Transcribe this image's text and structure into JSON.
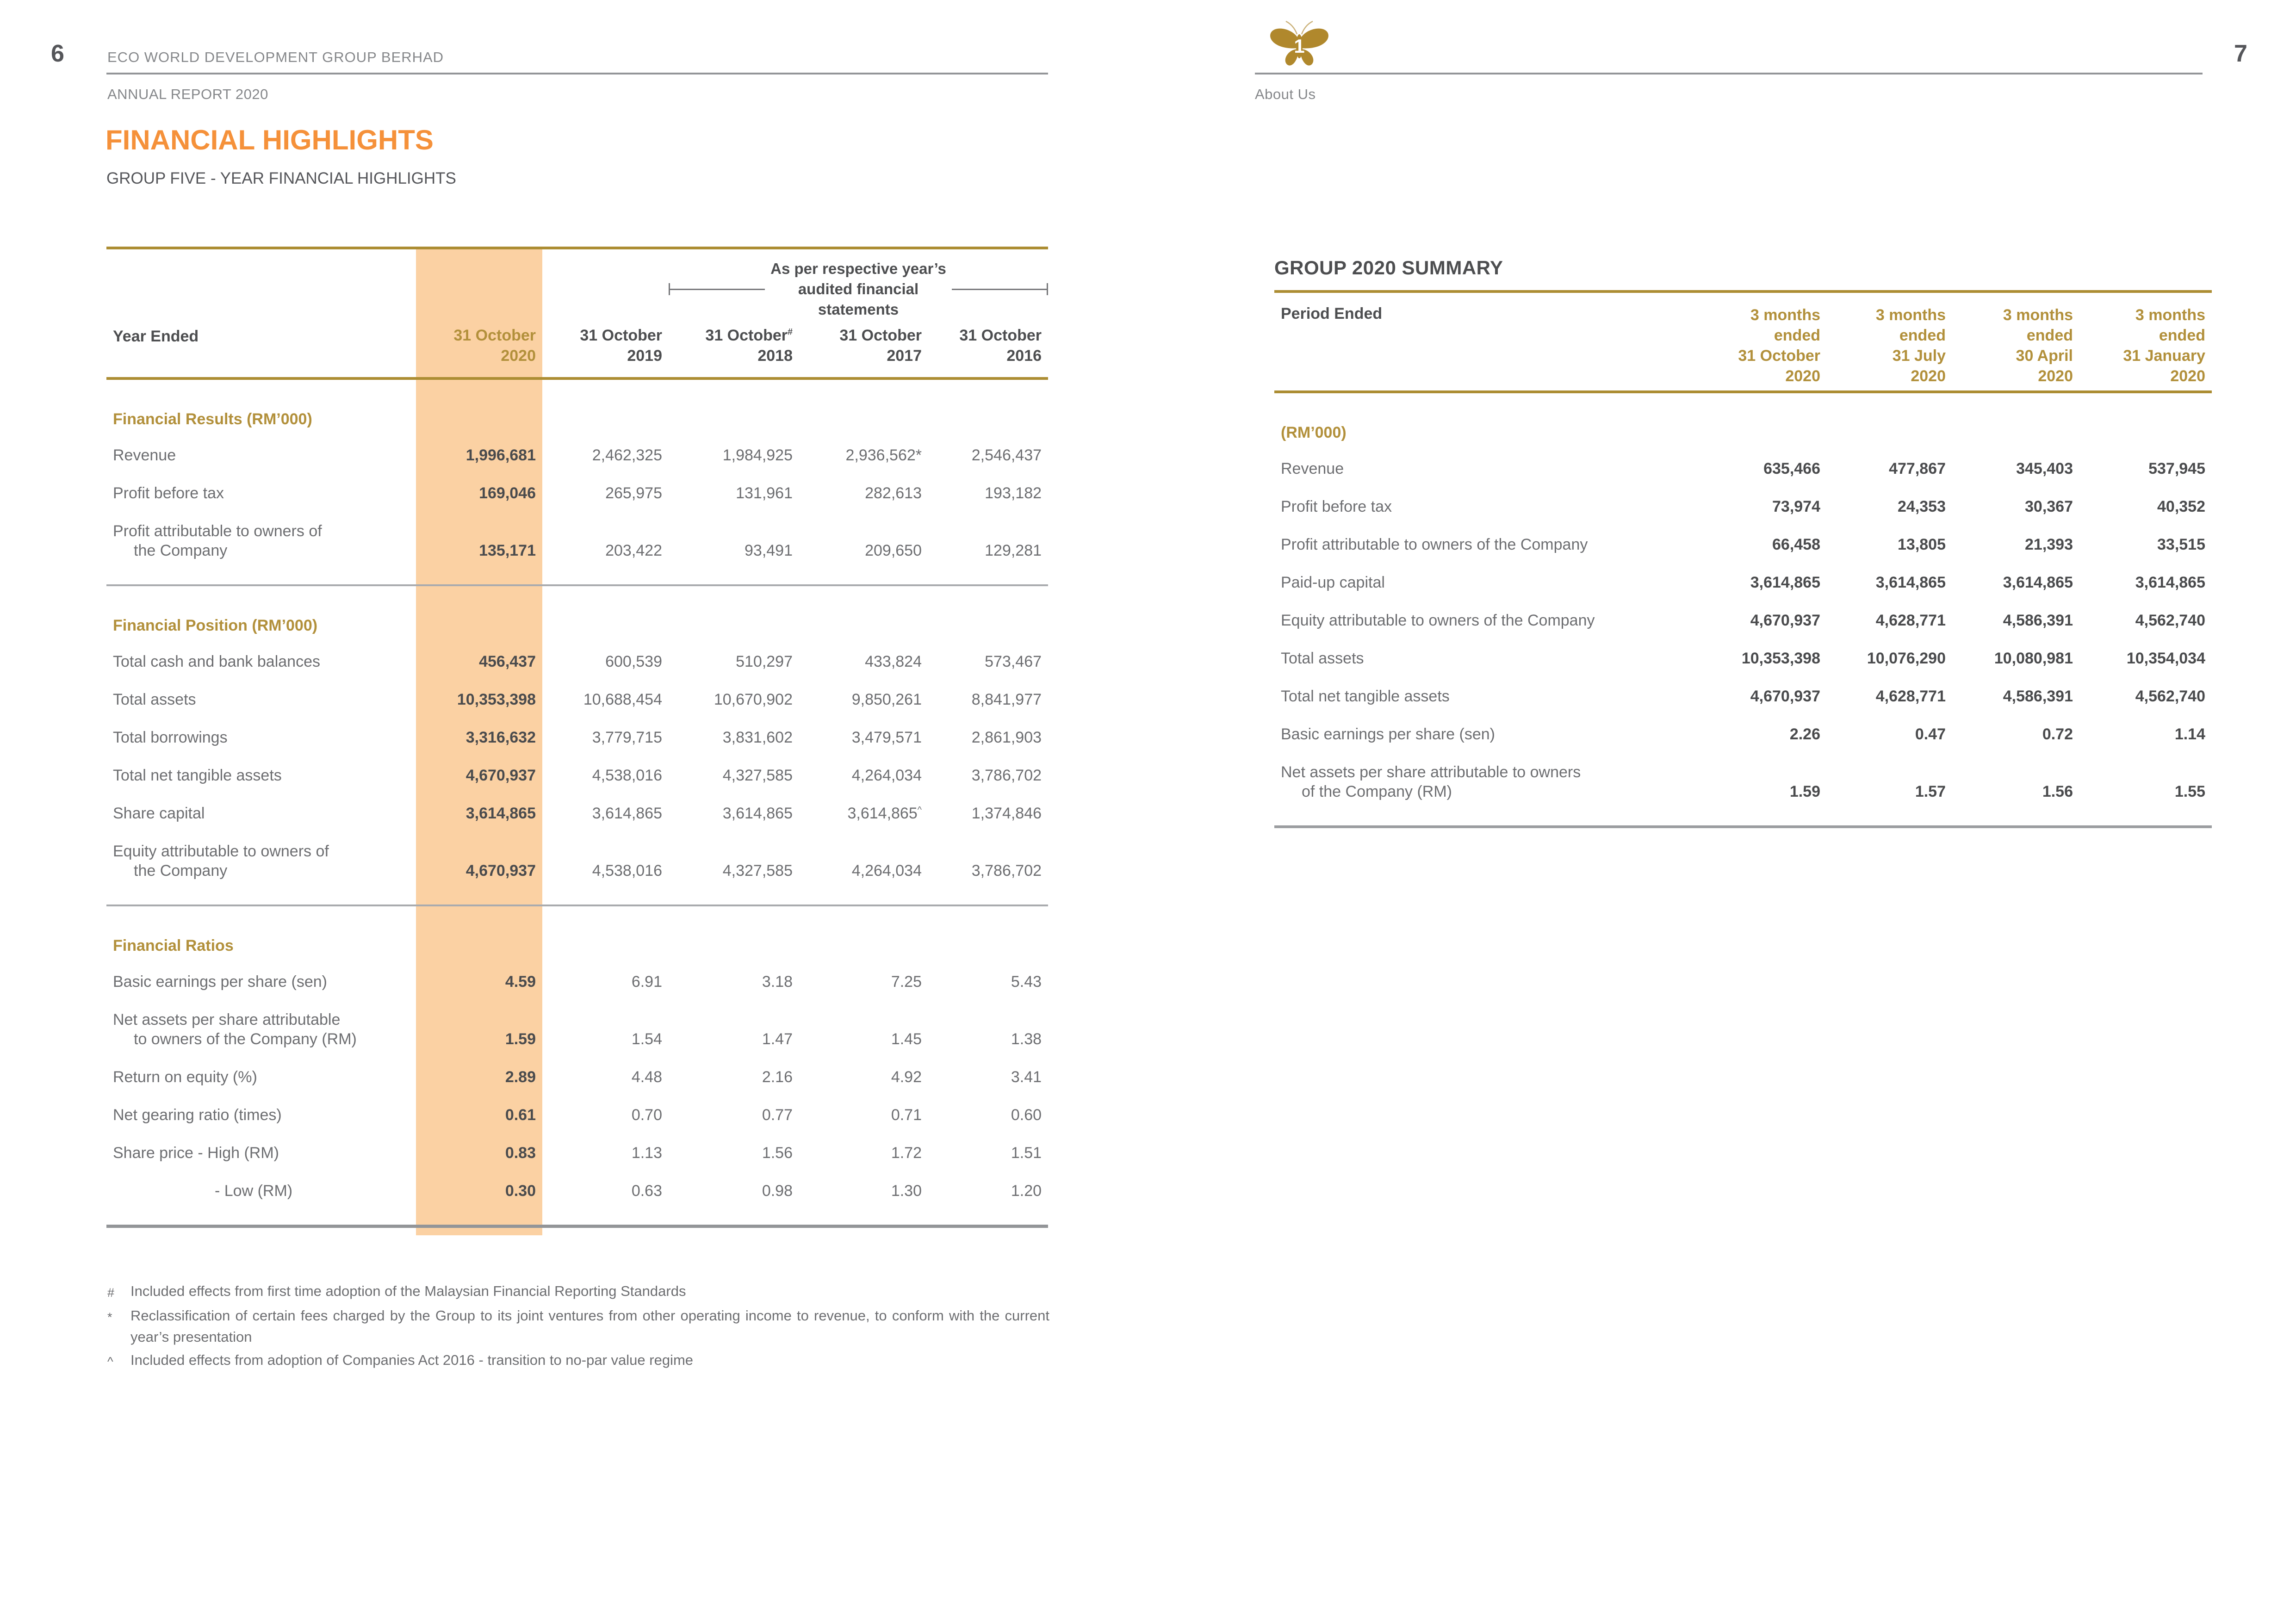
{
  "page_left": {
    "page_number": "6",
    "company": "ECO WORLD DEVELOPMENT GROUP BERHAD",
    "report": "ANNUAL REPORT 2020",
    "title": "FINANCIAL HIGHLIGHTS",
    "subtitle": "GROUP FIVE - YEAR FINANCIAL HIGHLIGHTS",
    "table": {
      "bracket_note_lines": [
        "As per respective year’s",
        "audited financial",
        "statements"
      ],
      "row_header": "Year Ended",
      "columns": [
        {
          "line1": "31 October",
          "line2": "2020",
          "sup": "",
          "highlight": true
        },
        {
          "line1": "31 October",
          "line2": "2019",
          "sup": ""
        },
        {
          "line1": "31 October",
          "line2": "2018",
          "sup": "#"
        },
        {
          "line1": "31 October",
          "line2": "2017",
          "sup": ""
        },
        {
          "line1": "31 October",
          "line2": "2016",
          "sup": ""
        }
      ],
      "sections": [
        {
          "heading": "Financial Results (RM’000)",
          "rows": [
            {
              "label": [
                "Revenue"
              ],
              "values": [
                "1,996,681",
                "2,462,325",
                "1,984,925",
                "2,936,562*",
                "2,546,437"
              ]
            },
            {
              "label": [
                "Profit before tax"
              ],
              "values": [
                "169,046",
                "265,975",
                "131,961",
                "282,613",
                "193,182"
              ]
            },
            {
              "label": [
                "Profit attributable to owners of",
                "the Company"
              ],
              "values": [
                "135,171",
                "203,422",
                "93,491",
                "209,650",
                "129,281"
              ]
            }
          ]
        },
        {
          "heading": "Financial Position (RM’000)",
          "rows": [
            {
              "label": [
                "Total cash and bank balances"
              ],
              "values": [
                "456,437",
                "600,539",
                "510,297",
                "433,824",
                "573,467"
              ]
            },
            {
              "label": [
                "Total assets"
              ],
              "values": [
                "10,353,398",
                "10,688,454",
                "10,670,902",
                "9,850,261",
                "8,841,977"
              ]
            },
            {
              "label": [
                "Total borrowings"
              ],
              "values": [
                "3,316,632",
                "3,779,715",
                "3,831,602",
                "3,479,571",
                "2,861,903"
              ]
            },
            {
              "label": [
                "Total net tangible assets"
              ],
              "values": [
                "4,670,937",
                "4,538,016",
                "4,327,585",
                "4,264,034",
                "3,786,702"
              ]
            },
            {
              "label": [
                "Share capital"
              ],
              "values": [
                "3,614,865",
                "3,614,865",
                "3,614,865",
                "3,614,865^",
                "1,374,846"
              ]
            },
            {
              "label": [
                "Equity attributable to owners of",
                "the Company"
              ],
              "values": [
                "4,670,937",
                "4,538,016",
                "4,327,585",
                "4,264,034",
                "3,786,702"
              ]
            }
          ]
        },
        {
          "heading": "Financial Ratios",
          "rows": [
            {
              "label": [
                "Basic earnings per share (sen)"
              ],
              "values": [
                "4.59",
                "6.91",
                "3.18",
                "7.25",
                "5.43"
              ]
            },
            {
              "label": [
                "Net assets per share attributable",
                "to owners of the Company (RM)"
              ],
              "values": [
                "1.59",
                "1.54",
                "1.47",
                "1.45",
                "1.38"
              ]
            },
            {
              "label": [
                "Return on equity (%)"
              ],
              "values": [
                "2.89",
                "4.48",
                "2.16",
                "4.92",
                "3.41"
              ]
            },
            {
              "label": [
                "Net gearing ratio (times)"
              ],
              "values": [
                "0.61",
                "0.70",
                "0.77",
                "0.71",
                "0.60"
              ]
            },
            {
              "label": [
                "Share price - High (RM)"
              ],
              "values": [
                "0.83",
                "1.13",
                "1.56",
                "1.72",
                "1.51"
              ]
            },
            {
              "label": [
                "- Low (RM)"
              ],
              "indent": 220,
              "values": [
                "0.30",
                "0.63",
                "0.98",
                "1.30",
                "1.20"
              ]
            }
          ]
        }
      ],
      "footnotes": [
        {
          "symbol": "#",
          "text": "Included effects from first time adoption of the Malaysian Financial Reporting Standards"
        },
        {
          "symbol": "*",
          "text": "Reclassification of certain fees charged by the Group to its joint ventures from other operating income to revenue, to conform with the current year’s presentation"
        },
        {
          "symbol": "^",
          "text": "Included effects from adoption of Companies Act 2016 - transition to no-par value regime"
        }
      ]
    }
  },
  "page_right": {
    "page_number": "7",
    "section_tab": {
      "number": "1",
      "label": "About Us"
    },
    "summary_title": "GROUP 2020 SUMMARY",
    "table": {
      "row_header": "Period Ended",
      "columns": [
        {
          "lines": [
            "3 months",
            "ended",
            "31 October",
            "2020"
          ]
        },
        {
          "lines": [
            "3 months",
            "ended",
            "31 July",
            "2020"
          ]
        },
        {
          "lines": [
            "3 months",
            "ended",
            "30 April",
            "2020"
          ]
        },
        {
          "lines": [
            "3 months",
            "ended",
            "31 January",
            "2020"
          ]
        }
      ],
      "unit_heading": "(RM’000)",
      "rows": [
        {
          "label": [
            "Revenue"
          ],
          "values": [
            "635,466",
            "477,867",
            "345,403",
            "537,945"
          ]
        },
        {
          "label": [
            "Profit before tax"
          ],
          "values": [
            "73,974",
            "24,353",
            "30,367",
            "40,352"
          ]
        },
        {
          "label": [
            "Profit attributable to owners of the Company"
          ],
          "values": [
            "66,458",
            "13,805",
            "21,393",
            "33,515"
          ]
        },
        {
          "label": [
            "Paid-up capital"
          ],
          "values": [
            "3,614,865",
            "3,614,865",
            "3,614,865",
            "3,614,865"
          ]
        },
        {
          "label": [
            "Equity attributable to owners of the Company"
          ],
          "values": [
            "4,670,937",
            "4,628,771",
            "4,586,391",
            "4,562,740"
          ]
        },
        {
          "label": [
            "Total assets"
          ],
          "values": [
            "10,353,398",
            "10,076,290",
            "10,080,981",
            "10,354,034"
          ]
        },
        {
          "label": [
            "Total net tangible assets"
          ],
          "values": [
            "4,670,937",
            "4,628,771",
            "4,586,391",
            "4,562,740"
          ]
        },
        {
          "label": [
            "Basic earnings per share (sen)"
          ],
          "values": [
            "2.26",
            "0.47",
            "0.72",
            "1.14"
          ]
        },
        {
          "label": [
            "Net assets per share attributable to owners",
            "of the Company (RM)"
          ],
          "values": [
            "1.59",
            "1.57",
            "1.56",
            "1.55"
          ]
        }
      ]
    }
  },
  "colors": {
    "accent_orange": "#F5913A",
    "gold_text": "#B2903B",
    "gold_line": "#AC8D33",
    "highlight_band": "#FBD1A3",
    "text_dark": "#4D4E50",
    "text_gray": "#6D6E71",
    "rule_gray": "#A9ABAE",
    "heavy_rule_gray": "#939598",
    "butterfly_gold": "#B0882C"
  }
}
